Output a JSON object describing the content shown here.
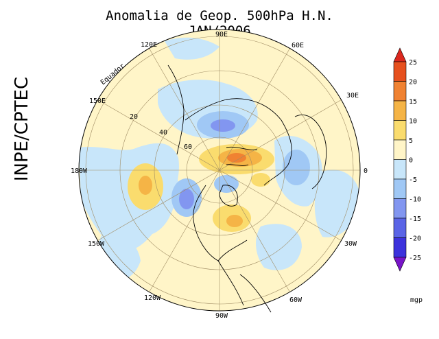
{
  "title": "Anomalia de Geop. 500hPa H.N. JAN/2006",
  "organization": "INPE/CPTEC",
  "longitude_labels": [
    "90E",
    "60E",
    "30E",
    "0",
    "30W",
    "60W",
    "90W",
    "120W",
    "150W",
    "180W",
    "150E",
    "120E"
  ],
  "latitude_labels": [
    "20",
    "40",
    "60"
  ],
  "equator_label": "Equador",
  "colorbar": {
    "unit": "mgp",
    "ticks": [
      "25",
      "20",
      "15",
      "10",
      "5",
      "0",
      "-5",
      "-10",
      "-15",
      "-20",
      "-25"
    ],
    "colors": [
      "#e6501e",
      "#f08232",
      "#f5b446",
      "#fadc6e",
      "#fff5c8",
      "#c8e6fa",
      "#a0c8f5",
      "#8296f0",
      "#5a64e6",
      "#3c32dc"
    ],
    "top_arrow_color": "#dc281e",
    "bottom_arrow_color": "#7814c8"
  },
  "map_colors": {
    "neutral_positive": "#fff5c8",
    "neutral_negative": "#c8e6fa",
    "positive_5_10": "#fadc6e",
    "positive_10_15": "#f5b446",
    "positive_15_20": "#f08232",
    "negative_5_10": "#a0c8f5",
    "negative_10_15": "#8296f0",
    "negative_15_20": "#5a64e6"
  }
}
